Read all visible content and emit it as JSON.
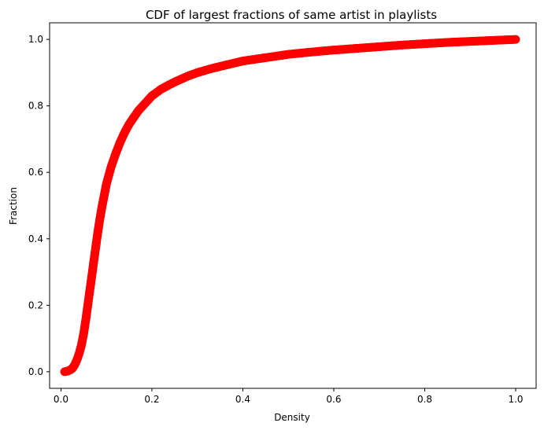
{
  "chart_data": {
    "type": "scatter",
    "title": "CDF of largest fractions of same artist in playlists",
    "xlabel": "Density",
    "ylabel": "Fraction",
    "xlim": [
      -0.025,
      1.045
    ],
    "ylim": [
      -0.05,
      1.05
    ],
    "xticks": [
      0.0,
      0.2,
      0.4,
      0.6,
      0.8,
      1.0
    ],
    "xtick_labels": [
      "0.0",
      "0.2",
      "0.4",
      "0.6",
      "0.8",
      "1.0"
    ],
    "yticks": [
      0.0,
      0.2,
      0.4,
      0.6,
      0.8,
      1.0
    ],
    "ytick_labels": [
      "0.0",
      "0.2",
      "0.4",
      "0.6",
      "0.8",
      "1.0"
    ],
    "marker_color": "#ff0000",
    "grid": false,
    "series": [
      {
        "x": [
          0.008,
          0.015,
          0.02,
          0.025,
          0.03,
          0.035,
          0.04,
          0.045,
          0.05,
          0.055,
          0.06,
          0.065,
          0.07,
          0.075,
          0.08,
          0.085,
          0.09,
          0.095,
          0.1,
          0.11,
          0.12,
          0.13,
          0.14,
          0.15,
          0.16,
          0.17,
          0.18,
          0.19,
          0.2,
          0.22,
          0.24,
          0.26,
          0.28,
          0.3,
          0.33,
          0.36,
          0.4,
          0.45,
          0.5,
          0.55,
          0.6,
          0.65,
          0.7,
          0.75,
          0.8,
          0.85,
          0.9,
          0.95,
          1.0
        ],
        "y": [
          0.0,
          0.002,
          0.005,
          0.01,
          0.02,
          0.035,
          0.055,
          0.08,
          0.115,
          0.16,
          0.21,
          0.26,
          0.31,
          0.36,
          0.41,
          0.455,
          0.495,
          0.53,
          0.565,
          0.615,
          0.655,
          0.69,
          0.72,
          0.745,
          0.765,
          0.785,
          0.8,
          0.815,
          0.83,
          0.85,
          0.865,
          0.878,
          0.89,
          0.9,
          0.912,
          0.922,
          0.935,
          0.945,
          0.955,
          0.962,
          0.968,
          0.973,
          0.978,
          0.983,
          0.987,
          0.991,
          0.994,
          0.997,
          1.0
        ]
      }
    ]
  }
}
